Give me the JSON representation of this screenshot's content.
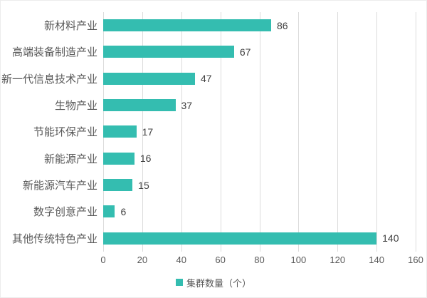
{
  "chart_data": {
    "type": "bar",
    "orientation": "horizontal",
    "title": "",
    "categories": [
      "新材料产业",
      "高端装备制造产业",
      "新一代信息技术产业",
      "生物产业",
      "节能环保产业",
      "新能源产业",
      "新能源汽车产业",
      "数字创意产业",
      "其他传统特色产业"
    ],
    "values": [
      86,
      67,
      47,
      37,
      17,
      16,
      15,
      6,
      140
    ],
    "legend": "集群数量（个）",
    "xlabel": "",
    "ylabel": "",
    "xlim": [
      0,
      160
    ],
    "xticks": [
      0,
      20,
      40,
      60,
      80,
      100,
      120,
      140,
      160
    ],
    "grid": true,
    "legend_position": "bottom-center",
    "bar_color": "#34bdb0",
    "grid_color": "#dcdcdc",
    "tick_label_color": "#595959",
    "category_label_color": "#595959",
    "value_label_color": "#404040"
  }
}
